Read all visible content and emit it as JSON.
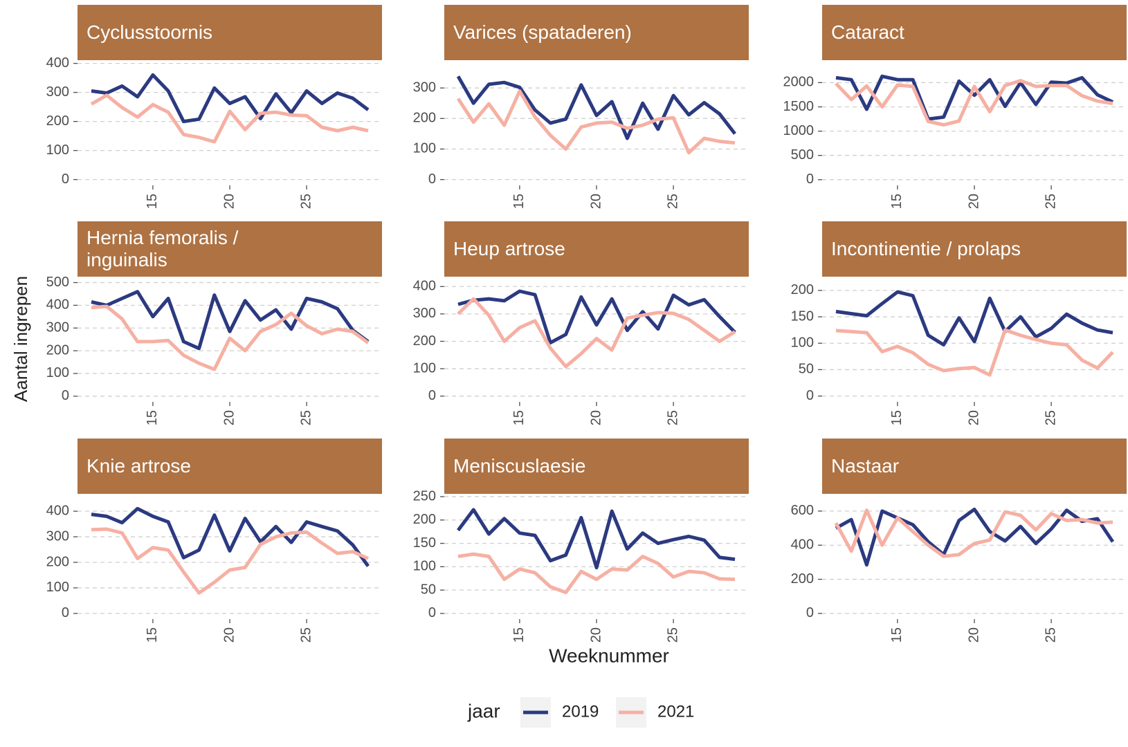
{
  "shared": {
    "y_label": "Aantal ingrepen",
    "x_label": "Weeknummer",
    "legend_title": "jaar",
    "legend_position": "bottom"
  },
  "chart_data": [
    {
      "type": "line",
      "title": "Cyclusstoornis",
      "x": [
        11,
        12,
        13,
        14,
        15,
        16,
        17,
        18,
        19,
        20,
        21,
        22,
        23,
        24,
        25,
        26,
        27,
        28,
        29
      ],
      "xlim": [
        10.1,
        29.9
      ],
      "xticks": [
        15,
        20,
        25
      ],
      "ylim": [
        -20,
        411
      ],
      "yticks": [
        0,
        100,
        200,
        300,
        400
      ],
      "grid": true,
      "series": [
        {
          "name": "2019",
          "color": "#2b3a80",
          "values": [
            305,
            298,
            322,
            285,
            360,
            305,
            200,
            208,
            315,
            262,
            285,
            210,
            295,
            230,
            305,
            262,
            298,
            280,
            240
          ]
        },
        {
          "name": "2021",
          "color": "#f6b0a3",
          "values": [
            260,
            290,
            248,
            215,
            258,
            232,
            155,
            145,
            130,
            235,
            172,
            228,
            232,
            222,
            220,
            180,
            168,
            180,
            168
          ]
        }
      ]
    },
    {
      "type": "line",
      "title": "Varices (spataderen)",
      "x": [
        11,
        12,
        13,
        14,
        15,
        16,
        17,
        18,
        19,
        20,
        21,
        22,
        23,
        24,
        25,
        26,
        27,
        28,
        29
      ],
      "xlim": [
        10.1,
        29.9
      ],
      "xticks": [
        15,
        20,
        25
      ],
      "ylim": [
        -19,
        391
      ],
      "yticks": [
        0,
        100,
        200,
        300
      ],
      "grid": true,
      "series": [
        {
          "name": "2019",
          "color": "#2b3a80",
          "values": [
            338,
            250,
            312,
            318,
            302,
            228,
            185,
            198,
            310,
            210,
            255,
            135,
            250,
            165,
            275,
            212,
            252,
            215,
            150
          ]
        },
        {
          "name": "2021",
          "color": "#f6b0a3",
          "values": [
            265,
            188,
            248,
            178,
            290,
            205,
            145,
            100,
            172,
            185,
            188,
            168,
            178,
            198,
            202,
            88,
            135,
            125,
            120
          ]
        }
      ]
    },
    {
      "type": "line",
      "title": "Cataract",
      "x": [
        11,
        12,
        13,
        14,
        15,
        16,
        17,
        18,
        19,
        20,
        21,
        22,
        23,
        24,
        25,
        26,
        27,
        28,
        29
      ],
      "xlim": [
        10.1,
        29.9
      ],
      "xticks": [
        15,
        20,
        25
      ],
      "ylim": [
        -117,
        2462
      ],
      "yticks": [
        0,
        500,
        1000,
        1500,
        2000
      ],
      "grid": true,
      "series": [
        {
          "name": "2019",
          "color": "#2b3a80",
          "values": [
            2100,
            2060,
            1450,
            2130,
            2060,
            2060,
            1250,
            1290,
            2030,
            1740,
            2060,
            1510,
            2000,
            1550,
            2010,
            1990,
            2100,
            1750,
            1600
          ]
        },
        {
          "name": "2021",
          "color": "#f6b0a3",
          "values": [
            1980,
            1650,
            1930,
            1500,
            1950,
            1920,
            1200,
            1130,
            1210,
            1920,
            1400,
            1940,
            2040,
            1920,
            1940,
            1940,
            1730,
            1620,
            1570
          ]
        }
      ]
    },
    {
      "type": "line",
      "title": "Hernia femoralis /\ninguinalis",
      "x": [
        11,
        12,
        13,
        14,
        15,
        16,
        17,
        18,
        19,
        20,
        21,
        22,
        23,
        24,
        25,
        26,
        27,
        28,
        29
      ],
      "xlim": [
        10.1,
        29.9
      ],
      "xticks": [
        15,
        20,
        25
      ],
      "ylim": [
        -25,
        526
      ],
      "yticks": [
        0,
        100,
        200,
        300,
        400,
        500
      ],
      "grid": true,
      "series": [
        {
          "name": "2019",
          "color": "#2b3a80",
          "values": [
            415,
            400,
            430,
            460,
            350,
            430,
            240,
            210,
            445,
            285,
            420,
            335,
            380,
            295,
            430,
            415,
            385,
            290,
            240
          ]
        },
        {
          "name": "2021",
          "color": "#f6b0a3",
          "values": [
            390,
            395,
            340,
            240,
            240,
            245,
            180,
            145,
            118,
            255,
            200,
            285,
            315,
            365,
            310,
            275,
            295,
            285,
            235
          ]
        }
      ]
    },
    {
      "type": "line",
      "title": "Heup artrose",
      "x": [
        11,
        12,
        13,
        14,
        15,
        16,
        17,
        18,
        19,
        20,
        21,
        22,
        23,
        24,
        25,
        26,
        27,
        28,
        29
      ],
      "xlim": [
        10.1,
        29.9
      ],
      "xticks": [
        15,
        20,
        25
      ],
      "ylim": [
        -21,
        436
      ],
      "yticks": [
        0,
        100,
        200,
        300,
        400
      ],
      "grid": true,
      "series": [
        {
          "name": "2019",
          "color": "#2b3a80",
          "values": [
            335,
            350,
            355,
            348,
            383,
            370,
            195,
            225,
            362,
            260,
            355,
            240,
            308,
            245,
            368,
            333,
            352,
            290,
            233
          ]
        },
        {
          "name": "2021",
          "color": "#f6b0a3",
          "values": [
            300,
            355,
            295,
            200,
            250,
            275,
            175,
            108,
            155,
            210,
            168,
            285,
            295,
            305,
            302,
            280,
            240,
            200,
            235
          ]
        }
      ]
    },
    {
      "type": "line",
      "title": "Incontinentie / prolaps",
      "x": [
        11,
        12,
        13,
        14,
        15,
        16,
        17,
        18,
        19,
        20,
        21,
        22,
        23,
        24,
        25,
        26,
        27,
        28,
        29
      ],
      "xlim": [
        10.1,
        29.9
      ],
      "xticks": [
        15,
        20,
        25
      ],
      "ylim": [
        -11,
        226
      ],
      "yticks": [
        0,
        50,
        100,
        150,
        200
      ],
      "grid": true,
      "series": [
        {
          "name": "2019",
          "color": "#2b3a80",
          "values": [
            160,
            156,
            152,
            175,
            197,
            190,
            115,
            97,
            148,
            103,
            185,
            122,
            150,
            112,
            128,
            155,
            138,
            125,
            120
          ]
        },
        {
          "name": "2021",
          "color": "#f6b0a3",
          "values": [
            124,
            122,
            120,
            84,
            94,
            82,
            60,
            48,
            52,
            54,
            40,
            125,
            115,
            107,
            100,
            97,
            68,
            53,
            83
          ]
        }
      ]
    },
    {
      "type": "line",
      "title": "Knie artrose",
      "x": [
        11,
        12,
        13,
        14,
        15,
        16,
        17,
        18,
        19,
        20,
        21,
        22,
        23,
        24,
        25,
        26,
        27,
        28,
        29
      ],
      "xlim": [
        10.1,
        29.9
      ],
      "xticks": [
        15,
        20,
        25
      ],
      "ylim": [
        -22,
        468
      ],
      "yticks": [
        0,
        100,
        200,
        300,
        400
      ],
      "grid": true,
      "series": [
        {
          "name": "2019",
          "color": "#2b3a80",
          "values": [
            388,
            380,
            355,
            410,
            380,
            358,
            218,
            248,
            385,
            245,
            372,
            280,
            340,
            278,
            358,
            340,
            323,
            268,
            185
          ]
        },
        {
          "name": "2021",
          "color": "#f6b0a3",
          "values": [
            328,
            330,
            315,
            215,
            258,
            248,
            162,
            80,
            122,
            170,
            180,
            270,
            300,
            315,
            318,
            275,
            235,
            242,
            215
          ]
        }
      ]
    },
    {
      "type": "line",
      "title": "Meniscuslaesie",
      "x": [
        11,
        12,
        13,
        14,
        15,
        16,
        17,
        18,
        19,
        20,
        21,
        22,
        23,
        24,
        25,
        26,
        27,
        28,
        29
      ],
      "xlim": [
        10.1,
        29.9
      ],
      "xticks": [
        15,
        20,
        25
      ],
      "ylim": [
        -12,
        256
      ],
      "yticks": [
        0,
        50,
        100,
        150,
        200,
        250
      ],
      "grid": true,
      "series": [
        {
          "name": "2019",
          "color": "#2b3a80",
          "values": [
            178,
            222,
            170,
            203,
            172,
            167,
            113,
            125,
            205,
            98,
            219,
            138,
            172,
            150,
            158,
            165,
            157,
            120,
            116
          ]
        },
        {
          "name": "2021",
          "color": "#f6b0a3",
          "values": [
            122,
            127,
            122,
            73,
            95,
            87,
            57,
            45,
            90,
            73,
            95,
            93,
            122,
            107,
            78,
            90,
            87,
            74,
            73
          ]
        }
      ]
    },
    {
      "type": "line",
      "title": "Nastaar",
      "x": [
        11,
        12,
        13,
        14,
        15,
        16,
        17,
        18,
        19,
        20,
        21,
        22,
        23,
        24,
        25,
        26,
        27,
        28,
        29
      ],
      "xlim": [
        10.1,
        29.9
      ],
      "xticks": [
        15,
        20,
        25
      ],
      "ylim": [
        -33,
        701
      ],
      "yticks": [
        0,
        200,
        400,
        600
      ],
      "grid": true,
      "series": [
        {
          "name": "2019",
          "color": "#2b3a80",
          "values": [
            500,
            550,
            285,
            600,
            560,
            520,
            420,
            345,
            545,
            610,
            480,
            425,
            510,
            410,
            495,
            605,
            540,
            555,
            420
          ]
        },
        {
          "name": "2021",
          "color": "#f6b0a3",
          "values": [
            530,
            365,
            605,
            400,
            560,
            480,
            400,
            335,
            345,
            410,
            430,
            595,
            575,
            490,
            585,
            545,
            550,
            530,
            535
          ]
        }
      ]
    }
  ]
}
